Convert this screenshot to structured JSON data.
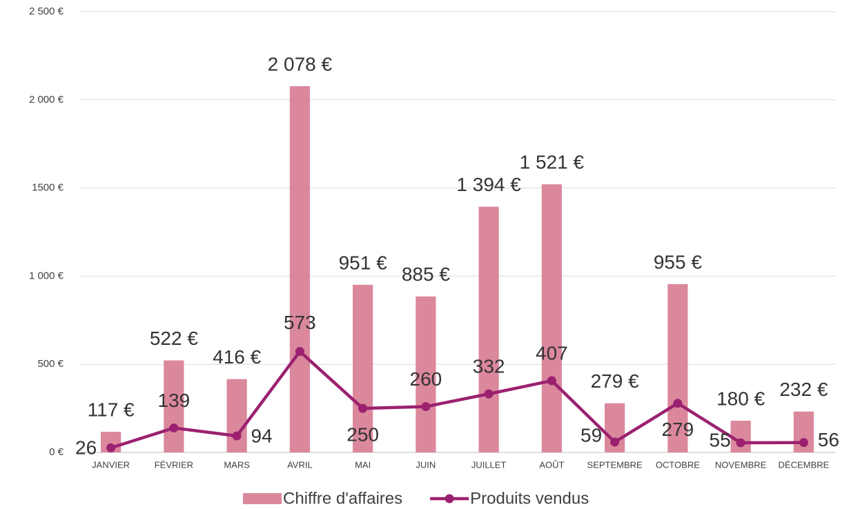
{
  "chart_data": {
    "type": "bar",
    "categories": [
      "JANVIER",
      "FÉVRIER",
      "MARS",
      "AVRIL",
      "MAI",
      "JUIN",
      "JUILLET",
      "AOÛT",
      "SEPTEMBRE",
      "OCTOBRE",
      "NOVEMBRE",
      "DÉCEMBRE"
    ],
    "series": [
      {
        "name": "Chiffre d'affaires",
        "type": "bar",
        "color": "#db889c",
        "values": [
          117,
          522,
          416,
          2078,
          951,
          885,
          1394,
          1521,
          279,
          955,
          180,
          232
        ],
        "value_labels": [
          "117 €",
          "522 €",
          "416 €",
          "2 078 €",
          "951 €",
          "885 €",
          "1 394 €",
          "1 521 €",
          "279 €",
          "955 €",
          "180 €",
          "232 €"
        ]
      },
      {
        "name": "Produits vendus",
        "type": "line",
        "color": "#9b2170",
        "values": [
          26,
          139,
          94,
          573,
          250,
          260,
          332,
          407,
          59,
          279,
          55,
          56
        ]
      }
    ],
    "ylim": [
      0,
      2500
    ],
    "yticks": [
      {
        "value": 0,
        "label": "0 €"
      },
      {
        "value": 500,
        "label": "500 €"
      },
      {
        "value": 1000,
        "label": "1 000 €"
      },
      {
        "value": 1500,
        "label": "1500 €"
      },
      {
        "value": 2000,
        "label": "2 000 €"
      },
      {
        "value": 2500,
        "label": "2 500 €"
      }
    ],
    "grid": true,
    "legend": "bottom"
  }
}
